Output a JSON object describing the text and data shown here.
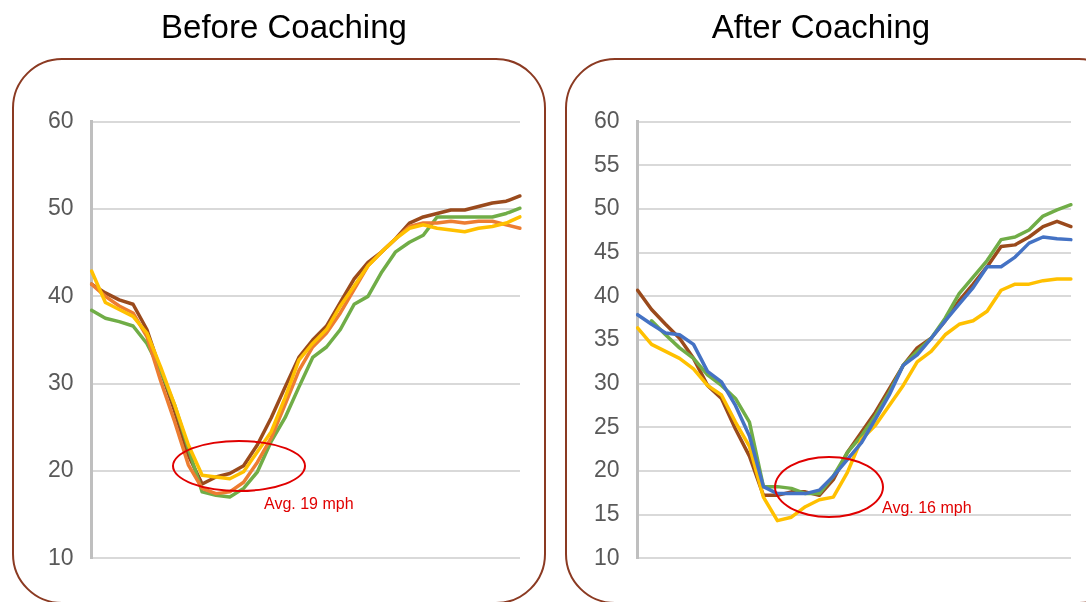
{
  "chart_data": [
    {
      "type": "line",
      "title": "Before Coaching",
      "categories": [
        null,
        null,
        null,
        null,
        null,
        null,
        null,
        null,
        null,
        null,
        null,
        null,
        null,
        null,
        null,
        null,
        null,
        null,
        null,
        null,
        null,
        null,
        null,
        null,
        null,
        null,
        null,
        null,
        null,
        null,
        null,
        null
      ],
      "series": [
        {
          "color": "#ffc000",
          "values": [
            42.9,
            39.3,
            38.5,
            37.7,
            35.8,
            31.9,
            27.6,
            23,
            19.5,
            19.3,
            19.1,
            19.9,
            22.2,
            24.5,
            28.4,
            32.7,
            34.6,
            36.2,
            38.9,
            41.2,
            43.5,
            45.1,
            46.6,
            47.8,
            48.2,
            47.8,
            47.6,
            47.4,
            47.8,
            48,
            48.4,
            49.1
          ]
        },
        {
          "color": "#ed7d31",
          "values": [
            41.4,
            40,
            38.9,
            38.1,
            35.4,
            30.3,
            25.7,
            20.7,
            18,
            17.4,
            17.6,
            18.7,
            21,
            23.8,
            27.6,
            31.5,
            34.2,
            35.8,
            38.1,
            40.8,
            43.5,
            45.1,
            46.6,
            48,
            48.4,
            48.4,
            48.6,
            48.4,
            48.6,
            48.6,
            48.2,
            47.8
          ]
        },
        {
          "color": "#70ad47",
          "values": [
            38.4,
            37.5,
            37.1,
            36.6,
            34.6,
            31.5,
            27.6,
            22.6,
            17.6,
            17.2,
            17,
            18,
            19.9,
            23.4,
            26.1,
            29.6,
            33,
            34.2,
            36.2,
            39.1,
            40,
            42.8,
            45.1,
            46.2,
            47,
            49.1,
            49.1,
            49.1,
            49.1,
            49.1,
            49.5,
            50.1
          ]
        },
        {
          "color": "#9a4a1c",
          "values": [
            41.4,
            40.4,
            39.6,
            39.1,
            36.2,
            31.5,
            26.9,
            21.8,
            18.5,
            19.3,
            19.7,
            20.6,
            23,
            26.1,
            29.6,
            33,
            35,
            36.6,
            39.3,
            42,
            43.9,
            45.1,
            46.6,
            48.4,
            49.1,
            49.5,
            49.9,
            49.9,
            50.3,
            50.7,
            50.9,
            51.5
          ]
        }
      ],
      "ylim": [
        10,
        60
      ],
      "yticks": [
        10,
        20,
        30,
        40,
        50,
        60
      ],
      "grid": "y",
      "legend": false,
      "marker": "none",
      "line_style": "solid",
      "annotations": [
        "Avg. 19 mph"
      ]
    },
    {
      "type": "line",
      "title": "After Coaching",
      "categories": [
        null,
        null,
        null,
        null,
        null,
        null,
        null,
        null,
        null,
        null,
        null,
        null,
        null,
        null,
        null,
        null,
        null,
        null,
        null,
        null,
        null,
        null,
        null,
        null,
        null,
        null,
        null,
        null,
        null,
        null,
        null,
        null
      ],
      "series": [
        {
          "color": "#4472c4",
          "values": [
            37.9,
            36.8,
            35.8,
            35.6,
            34.5,
            31.4,
            30.2,
            27.5,
            24,
            18.2,
            17.4,
            17.4,
            17.4,
            17.8,
            19.4,
            21.3,
            23.2,
            25.9,
            28.7,
            32.1,
            33.3,
            35.2,
            37.2,
            39.1,
            41,
            43.4,
            43.4,
            44.5,
            46.1,
            46.8,
            46.6,
            46.5
          ]
        },
        {
          "color": "#ffc000",
          "values": [
            36.4,
            34.5,
            33.7,
            32.9,
            31.7,
            29.8,
            28.7,
            25.6,
            22.8,
            17,
            14.3,
            14.7,
            15.9,
            16.7,
            17,
            19.8,
            23.6,
            25.2,
            27.5,
            29.8,
            32.5,
            33.7,
            35.6,
            36.8,
            37.2,
            38.3,
            40.7,
            41.4,
            41.4,
            41.8,
            42,
            42
          ]
        },
        {
          "color": "#70ad47",
          "values": [
            null,
            37.2,
            35.6,
            34.1,
            32.9,
            31,
            29.8,
            28.3,
            25.6,
            18.2,
            18.2,
            18,
            17.4,
            17.4,
            19.4,
            22.1,
            24,
            26.3,
            29,
            32.1,
            33.7,
            35.2,
            37.5,
            40.3,
            42.2,
            44.1,
            46.5,
            46.8,
            47.6,
            49.2,
            49.9,
            50.5
          ]
        },
        {
          "color": "#9a4a1c",
          "values": [
            40.7,
            38.5,
            36.8,
            35.2,
            32.9,
            29.8,
            28.3,
            24.8,
            21.7,
            17.2,
            17.2,
            17.6,
            17.6,
            17.2,
            19,
            22.1,
            24.4,
            26.7,
            29.4,
            32.1,
            34.1,
            35.2,
            37.2,
            39.5,
            41.4,
            43.4,
            45.7,
            45.9,
            46.8,
            48,
            48.6,
            48
          ]
        }
      ],
      "ylim": [
        10,
        60
      ],
      "yticks": [
        10,
        15,
        20,
        25,
        30,
        35,
        40,
        45,
        50,
        55,
        60
      ],
      "grid": "y",
      "legend": false,
      "marker": "none",
      "line_style": "solid",
      "annotations": [
        "Avg. 16 mph"
      ]
    }
  ]
}
